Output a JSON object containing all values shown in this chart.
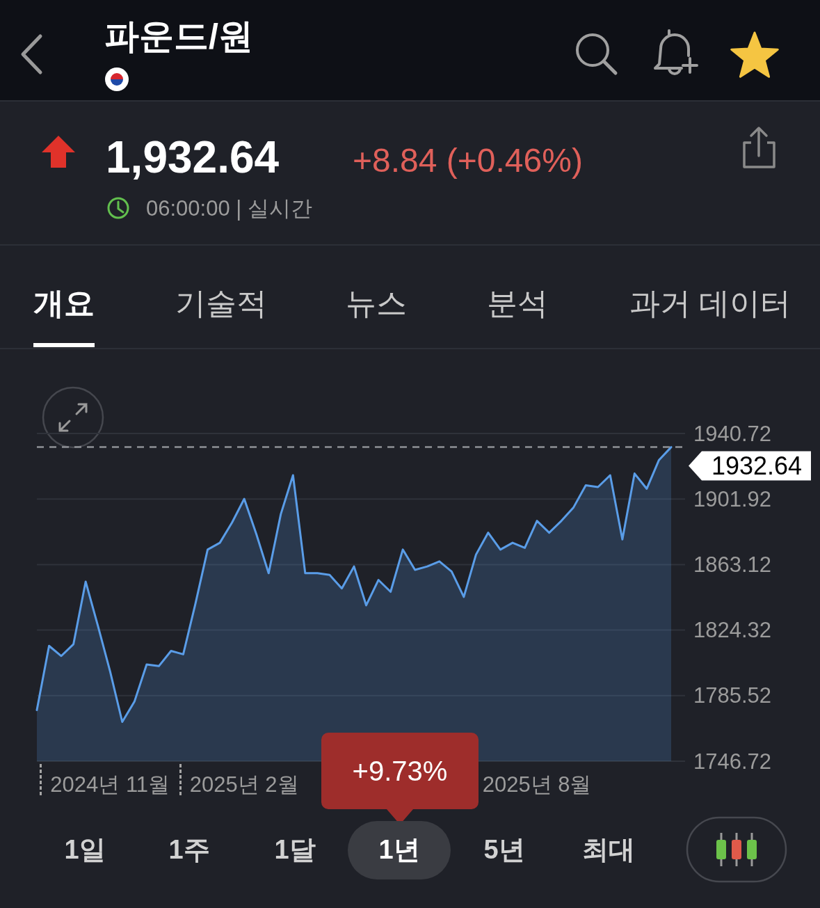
{
  "chart_data": {
    "type": "area",
    "title": "파운드/원",
    "categories": [
      null,
      null,
      null,
      null,
      null,
      null,
      "2024년 11월",
      null,
      null,
      null,
      null,
      null,
      null,
      null,
      null,
      null,
      null,
      "2025년 2월",
      null,
      null,
      null,
      null,
      null,
      null,
      null,
      null,
      null,
      null,
      null,
      null,
      null,
      null,
      null,
      null,
      null,
      null,
      null,
      null,
      null,
      null,
      null,
      "2025년 8월",
      null,
      null,
      null,
      null,
      null,
      null,
      null,
      null,
      null,
      null,
      null
    ],
    "values": [
      1777,
      1815,
      1809,
      1816,
      1853,
      1827,
      1800,
      1770,
      1782,
      1804,
      1803,
      1812,
      1810,
      1840,
      1872,
      1876,
      1888,
      1902,
      1881,
      1858,
      1893,
      1916,
      1858,
      1858,
      1857,
      1849,
      1862,
      1839,
      1854,
      1847,
      1872,
      1860,
      1862,
      1865,
      1859,
      1844,
      1869,
      1882,
      1872,
      1876,
      1873,
      1889,
      1882,
      1889,
      1897,
      1910,
      1909,
      1916,
      1878,
      1917,
      1908,
      1925,
      1932.64
    ],
    "color": "#5a9de8",
    "ylim": [
      1746.72,
      1940.72
    ],
    "yticks": [
      1746.72,
      1785.52,
      1824.32,
      1863.12,
      1901.92,
      1940.72
    ],
    "grid": "y",
    "ref_lines": [
      {
        "axis": "y",
        "value": 1932.64,
        "label": "1932.64",
        "color": "#8f9196",
        "line_style": "dashed"
      }
    ],
    "annotations": [
      "1,932.64",
      "+8.84 (+0.46%)",
      "06:00:00 | 실시간",
      "개요",
      "기술적",
      "뉴스",
      "분석",
      "과거 데이터",
      "+9.73%",
      "1일",
      "1주",
      "1달",
      "1년",
      "5년",
      "최대"
    ]
  }
}
